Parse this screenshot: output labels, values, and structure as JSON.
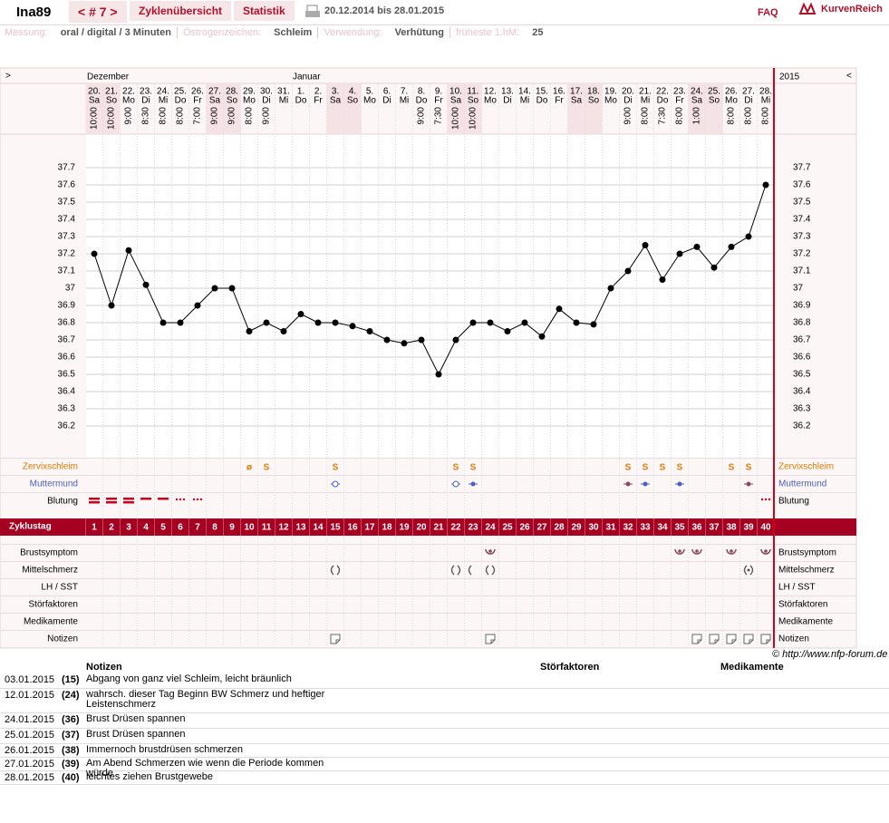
{
  "header": {
    "user": "Ina89",
    "cycle_nav": "< # 7 >",
    "tabs": [
      "Zyklenübersicht",
      "Statistik"
    ],
    "date_range": "20.12.2014 bis 28.01.2015",
    "faq": "FAQ",
    "logo": "KurvenReich"
  },
  "info": [
    {
      "label": "Messung:",
      "value": "oral / digital / 3 Minuten"
    },
    {
      "label": "Östrogenzeichen:",
      "value": "Schleim"
    },
    {
      "label": "Verwendung:",
      "value": "Verhütung"
    },
    {
      "label": "früheste 1.hM:",
      "value": "25"
    }
  ],
  "nav": {
    "prev": ">",
    "next": "<",
    "months": [
      "Dezember",
      "Januar"
    ],
    "year": "2015"
  },
  "chart_data": {
    "type": "line",
    "color": "#000000",
    "categories": [
      "20.",
      "21.",
      "22.",
      "23.",
      "24.",
      "25.",
      "26.",
      "27.",
      "28.",
      "29.",
      "30.",
      "31.",
      "1.",
      "2.",
      "3.",
      "4.",
      "5.",
      "6.",
      "7.",
      "8.",
      "9.",
      "10.",
      "11.",
      "12.",
      "13.",
      "14.",
      "15.",
      "16.",
      "17.",
      "18.",
      "19.",
      "20.",
      "21.",
      "22.",
      "23.",
      "24.",
      "25.",
      "26.",
      "27.",
      "28."
    ],
    "weekdays": [
      "Sa",
      "So",
      "Mo",
      "Di",
      "Mi",
      "Do",
      "Fr",
      "Sa",
      "So",
      "Mo",
      "Di",
      "Mi",
      "Do",
      "Fr",
      "Sa",
      "So",
      "Mo",
      "Di",
      "Mi",
      "Do",
      "Fr",
      "Sa",
      "So",
      "Mo",
      "Di",
      "Mi",
      "Do",
      "Fr",
      "Sa",
      "So",
      "Mo",
      "Di",
      "Mi",
      "Do",
      "Fr",
      "Sa",
      "So",
      "Mo",
      "Di",
      "Mi"
    ],
    "times": [
      "10:00",
      "10:00",
      "9:00",
      "8:30",
      "8:00",
      "8:00",
      "7:00",
      "9:00",
      "9:00",
      "8:00",
      "9:00",
      null,
      null,
      null,
      null,
      null,
      null,
      null,
      null,
      "9:00",
      "7:30",
      "10:00",
      "10:00",
      null,
      null,
      null,
      null,
      null,
      null,
      null,
      null,
      "9:00",
      "8:00",
      "7:30",
      "8:00",
      "1:00",
      null,
      "8:00",
      "8:00",
      "8:00"
    ],
    "values": [
      37.2,
      36.9,
      37.22,
      37.02,
      36.8,
      36.8,
      36.9,
      37.0,
      37.0,
      36.75,
      36.8,
      36.75,
      36.85,
      36.8,
      36.8,
      36.78,
      36.75,
      36.7,
      36.68,
      36.7,
      36.5,
      36.7,
      36.8,
      36.8,
      36.75,
      36.8,
      36.72,
      36.88,
      36.8,
      36.79,
      37.0,
      37.1,
      37.25,
      37.05,
      37.2,
      37.24,
      37.12,
      37.24,
      37.3,
      37.6
    ],
    "ylim": [
      36.0,
      37.9
    ],
    "yticks": [
      37.7,
      37.6,
      37.5,
      37.4,
      37.3,
      37.2,
      37.1,
      37,
      36.9,
      36.8,
      36.7,
      36.6,
      36.5,
      36.4,
      36.3,
      36.2
    ],
    "grid": true,
    "cycle_days": [
      1,
      2,
      3,
      4,
      5,
      6,
      7,
      8,
      9,
      10,
      11,
      12,
      13,
      14,
      15,
      16,
      17,
      18,
      19,
      20,
      21,
      22,
      23,
      24,
      25,
      26,
      27,
      28,
      29,
      30,
      31,
      32,
      33,
      34,
      35,
      36,
      37,
      38,
      39,
      40
    ],
    "cervix_mucus": [
      null,
      null,
      null,
      null,
      null,
      null,
      null,
      null,
      null,
      "ø",
      "S",
      null,
      null,
      null,
      "S",
      null,
      null,
      null,
      null,
      null,
      null,
      "S",
      "S",
      null,
      null,
      null,
      null,
      null,
      null,
      null,
      null,
      "S",
      "S",
      "S",
      "S",
      null,
      null,
      "S",
      "S",
      null
    ],
    "rows": [
      "Zervixschleim",
      "Muttermund",
      "Blutung",
      "Zyklustag",
      "Brustsymptom",
      "Mittelschmerz",
      "LH / SST",
      "Störfaktoren",
      "Medikamente",
      "Notizen"
    ]
  },
  "copyright": "© http://www.nfp-forum.de",
  "notes_table": {
    "headers": [
      "Notizen",
      "Störfaktoren",
      "Medikamente"
    ],
    "rows": [
      {
        "date": "03.01.2015",
        "day": "(15)",
        "text": "Abgang von ganz viel Schleim, leicht bräunlich"
      },
      {
        "date": "12.01.2015",
        "day": "(24)",
        "text": "wahrsch. dieser Tag Beginn BW Schmerz und heftiger Leistenschmerz"
      },
      {
        "date": "24.01.2015",
        "day": "(36)",
        "text": "Brust Drüsen spannen"
      },
      {
        "date": "25.01.2015",
        "day": "(37)",
        "text": "Brust Drüsen spannen"
      },
      {
        "date": "26.01.2015",
        "day": "(38)",
        "text": "Immernoch brustdrüsen schmerzen"
      },
      {
        "date": "27.01.2015",
        "day": "(39)",
        "text": "Am Abend Schmerzen wie wenn die Periode kommen würde"
      },
      {
        "date": "28.01.2015",
        "day": "(40)",
        "text": "leichtes ziehen Brustgewebe"
      }
    ]
  }
}
